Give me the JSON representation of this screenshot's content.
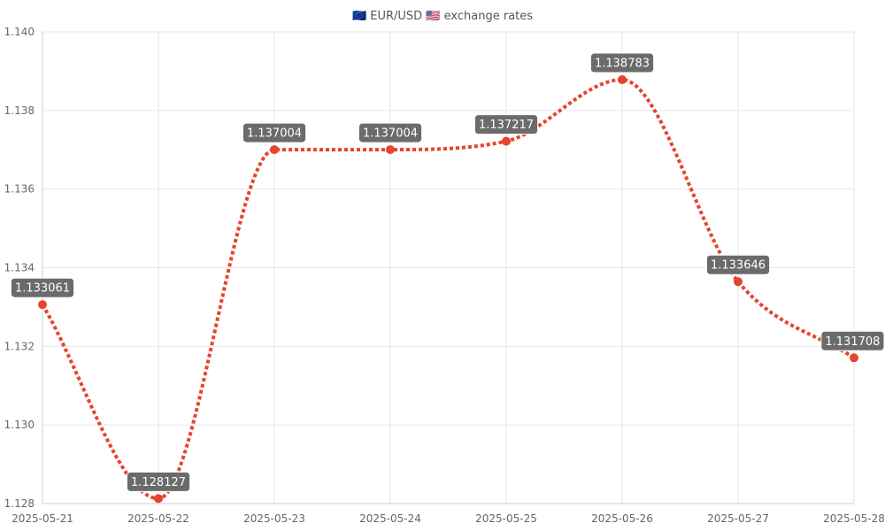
{
  "chart_data": {
    "type": "line",
    "title": "🇪🇺 EUR/USD 🇺🇸 exchange rates",
    "categories": [
      "2025-05-21",
      "2025-05-22",
      "2025-05-23",
      "2025-05-24",
      "2025-05-25",
      "2025-05-26",
      "2025-05-27",
      "2025-05-28"
    ],
    "series": [
      {
        "values": [
          1.133061,
          1.128127,
          1.137004,
          1.137004,
          1.137217,
          1.138783,
          1.133646,
          1.131708
        ],
        "color": "#e8432c",
        "line_style": "dotted",
        "smooth": true,
        "data_labels": [
          "1.133061",
          "1.128127",
          "1.137004",
          "1.137004",
          "1.137217",
          "1.138783",
          "1.133646",
          "1.131708"
        ]
      }
    ],
    "yticks": [
      "1.128",
      "1.130",
      "1.132",
      "1.134",
      "1.136",
      "1.138",
      "1.140"
    ],
    "ylim": [
      1.128,
      1.14
    ],
    "grid": true,
    "legend": "none"
  }
}
